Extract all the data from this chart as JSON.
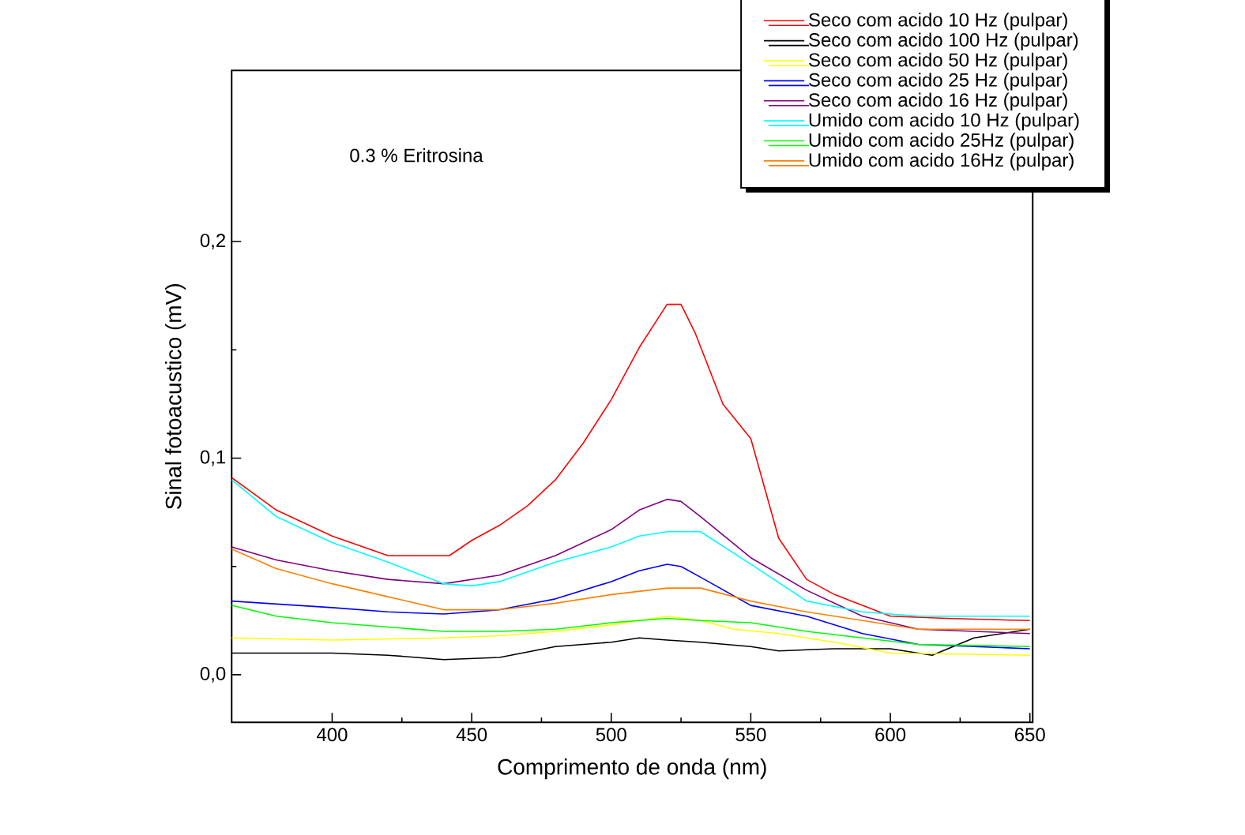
{
  "chart_data": {
    "type": "line",
    "xlabel": "Comprimento de onda (nm)",
    "ylabel": "Sinal fotoacustico (mV)",
    "annotations": [
      "0.3 % Eritrosina"
    ],
    "xlim": [
      364,
      651
    ],
    "ylim": [
      -0.022,
      0.279
    ],
    "xticks": [
      400,
      450,
      500,
      550,
      600,
      650
    ],
    "yticks": [
      {
        "value": 0,
        "label": "0,0"
      },
      {
        "value": 0.1,
        "label": "0,1"
      },
      {
        "value": 0.2,
        "label": "0,2"
      }
    ],
    "legend": "top right",
    "grid": false,
    "marker": "none",
    "line_style": "solid",
    "series": [
      {
        "name": "Seco com acido 10 Hz (pulpar)",
        "color": "#ff0000",
        "x": [
          364,
          380,
          400,
          420,
          430,
          442,
          450,
          460,
          470,
          480,
          490,
          500,
          510,
          520,
          525,
          530,
          540,
          550,
          560,
          570,
          580,
          590,
          600,
          620,
          650
        ],
        "values": [
          0.091,
          0.076,
          0.064,
          0.055,
          0.055,
          0.055,
          0.062,
          0.069,
          0.078,
          0.09,
          0.107,
          0.127,
          0.151,
          0.171,
          0.171,
          0.158,
          0.125,
          0.109,
          0.063,
          0.044,
          0.037,
          0.032,
          0.027,
          0.026,
          0.025
        ]
      },
      {
        "name": "Seco com acido 100 Hz (pulpar)",
        "color": "#000000",
        "x": [
          364,
          400,
          420,
          440,
          460,
          480,
          500,
          510,
          520,
          532,
          550,
          560,
          580,
          600,
          615,
          630,
          650
        ],
        "values": [
          0.01,
          0.01,
          0.009,
          0.007,
          0.008,
          0.013,
          0.015,
          0.017,
          0.016,
          0.015,
          0.013,
          0.011,
          0.012,
          0.012,
          0.009,
          0.017,
          0.021
        ]
      },
      {
        "name": "Seco com acido 50 Hz (pulpar)",
        "color": "#ffff00",
        "x": [
          364,
          400,
          440,
          460,
          480,
          500,
          520,
          532,
          544,
          560,
          580,
          600,
          650
        ],
        "values": [
          0.017,
          0.016,
          0.017,
          0.018,
          0.02,
          0.023,
          0.027,
          0.025,
          0.021,
          0.019,
          0.015,
          0.01,
          0.009
        ]
      },
      {
        "name": "Seco com acido 25 Hz (pulpar)",
        "color": "#0000ff",
        "x": [
          364,
          400,
          420,
          440,
          460,
          480,
          500,
          510,
          520,
          525,
          532,
          550,
          570,
          590,
          610,
          650
        ],
        "values": [
          0.034,
          0.031,
          0.029,
          0.028,
          0.03,
          0.035,
          0.043,
          0.048,
          0.051,
          0.05,
          0.045,
          0.032,
          0.027,
          0.019,
          0.014,
          0.012
        ]
      },
      {
        "name": "Seco com acido 16 Hz (pulpar)",
        "color": "#800080",
        "x": [
          364,
          380,
          400,
          420,
          440,
          460,
          480,
          500,
          510,
          520,
          525,
          532,
          550,
          570,
          590,
          610,
          650
        ],
        "values": [
          0.059,
          0.053,
          0.048,
          0.044,
          0.042,
          0.046,
          0.055,
          0.067,
          0.076,
          0.081,
          0.08,
          0.073,
          0.054,
          0.039,
          0.027,
          0.021,
          0.019
        ]
      },
      {
        "name": "Umido com acido 10 Hz (pulpar)",
        "color": "#00ffff",
        "x": [
          364,
          380,
          400,
          420,
          440,
          450,
          460,
          480,
          500,
          510,
          520,
          532,
          550,
          570,
          590,
          610,
          650
        ],
        "values": [
          0.09,
          0.073,
          0.061,
          0.052,
          0.042,
          0.041,
          0.043,
          0.052,
          0.059,
          0.064,
          0.066,
          0.066,
          0.051,
          0.034,
          0.029,
          0.027,
          0.027
        ]
      },
      {
        "name": "Umido com acido 25Hz (pulpar)",
        "color": "#00ff00",
        "x": [
          364,
          380,
          400,
          420,
          440,
          460,
          480,
          500,
          520,
          532,
          550,
          570,
          590,
          610,
          650
        ],
        "values": [
          0.032,
          0.027,
          0.024,
          0.022,
          0.02,
          0.02,
          0.021,
          0.024,
          0.026,
          0.025,
          0.024,
          0.02,
          0.017,
          0.014,
          0.013
        ]
      },
      {
        "name": "Umido com acido 16Hz (pulpar)",
        "color": "#ff8000",
        "x": [
          364,
          380,
          400,
          420,
          440,
          460,
          480,
          500,
          520,
          532,
          550,
          570,
          590,
          610,
          650
        ],
        "values": [
          0.058,
          0.049,
          0.042,
          0.036,
          0.03,
          0.03,
          0.033,
          0.037,
          0.04,
          0.04,
          0.034,
          0.029,
          0.025,
          0.021,
          0.021
        ]
      }
    ]
  }
}
